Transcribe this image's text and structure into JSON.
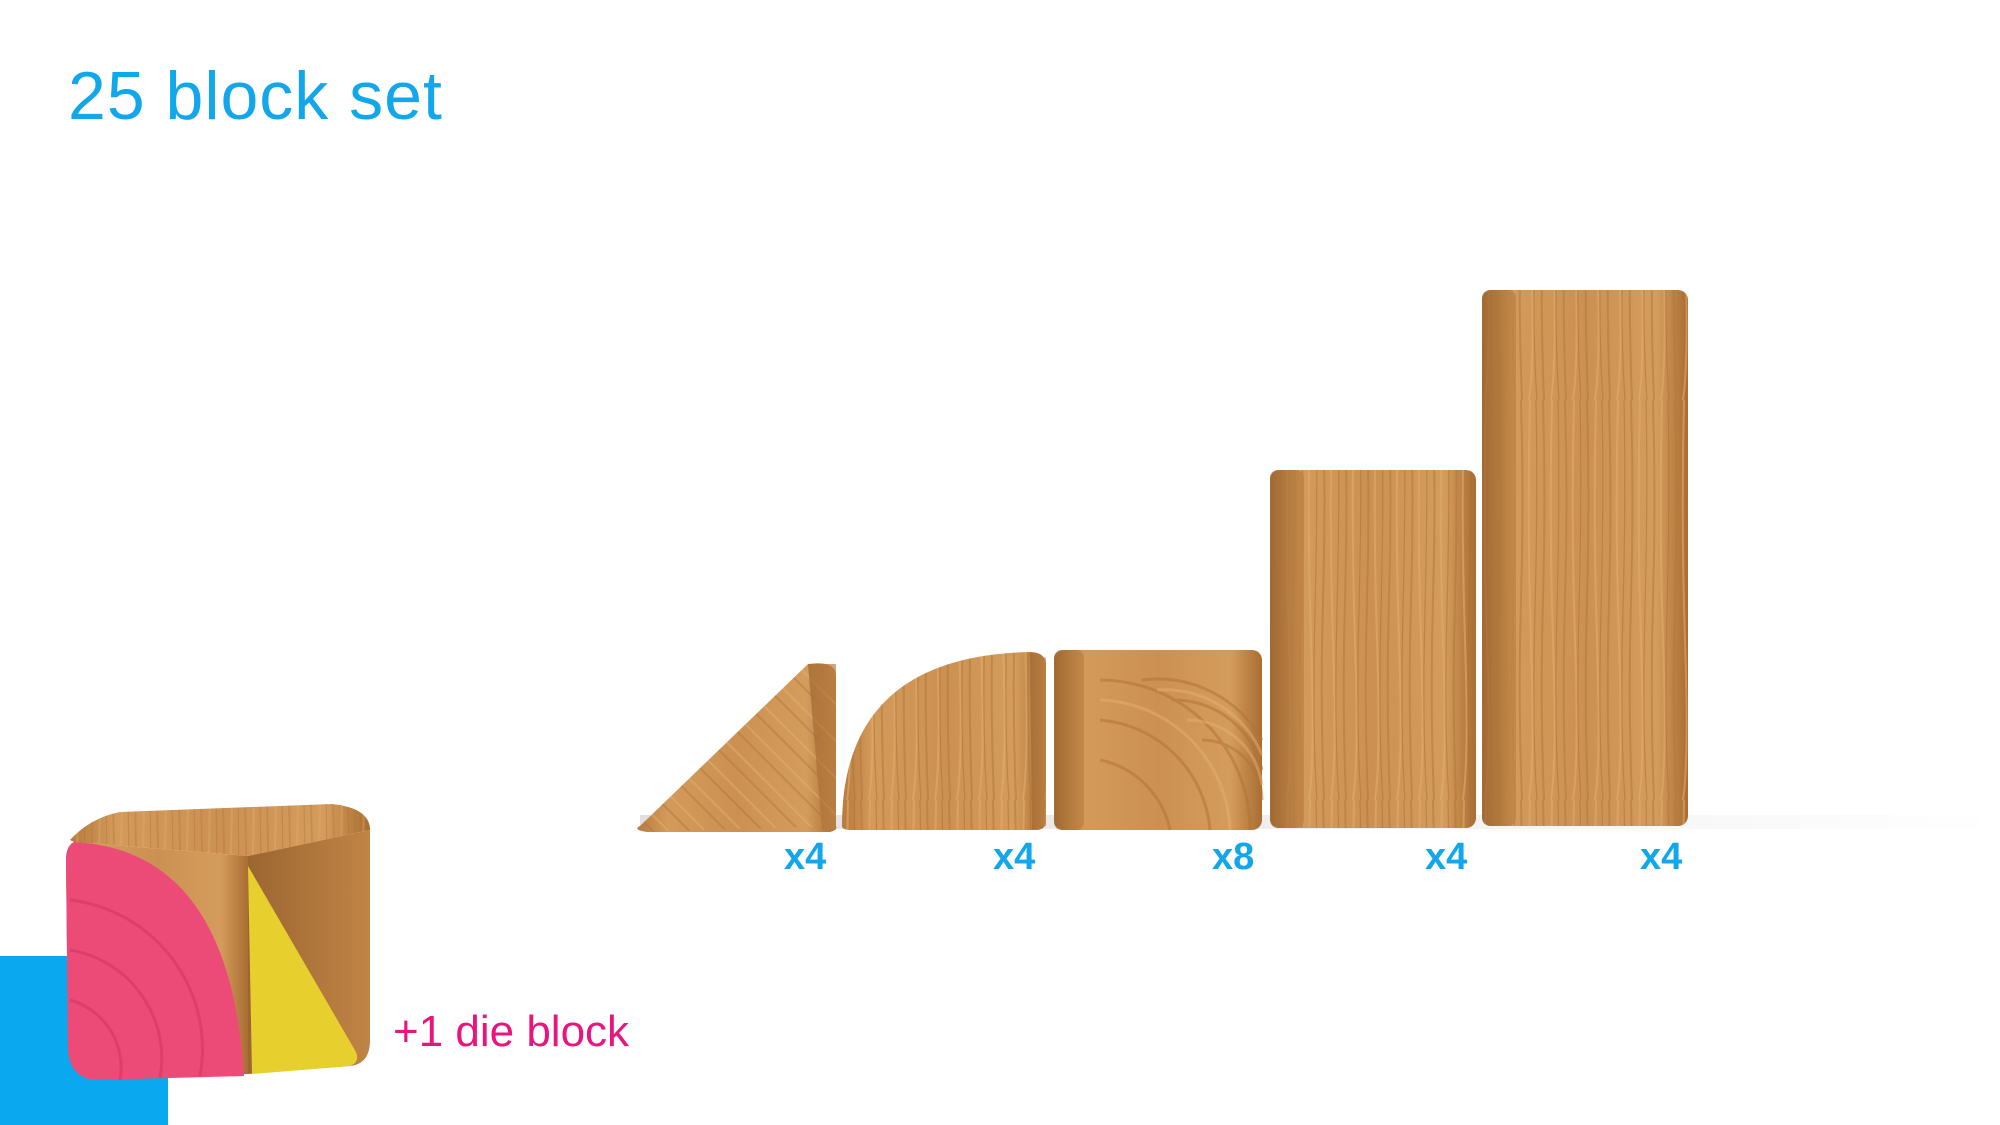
{
  "title": "25 block set",
  "blocks": [
    {
      "shape": "triangle",
      "count": "x4"
    },
    {
      "shape": "quarter-circle",
      "count": "x4"
    },
    {
      "shape": "cube",
      "count": "x8"
    },
    {
      "shape": "medium-pillar",
      "count": "x4"
    },
    {
      "shape": "tall-pillar",
      "count": "x4"
    }
  ],
  "die_block": {
    "label": "+1 die block"
  },
  "colors": {
    "accent_blue": "#12a7ea",
    "magenta": "#e8157f",
    "die_pink": "#ec4a77",
    "die_yellow": "#e7cf2e",
    "wood": "#c98e4c"
  }
}
